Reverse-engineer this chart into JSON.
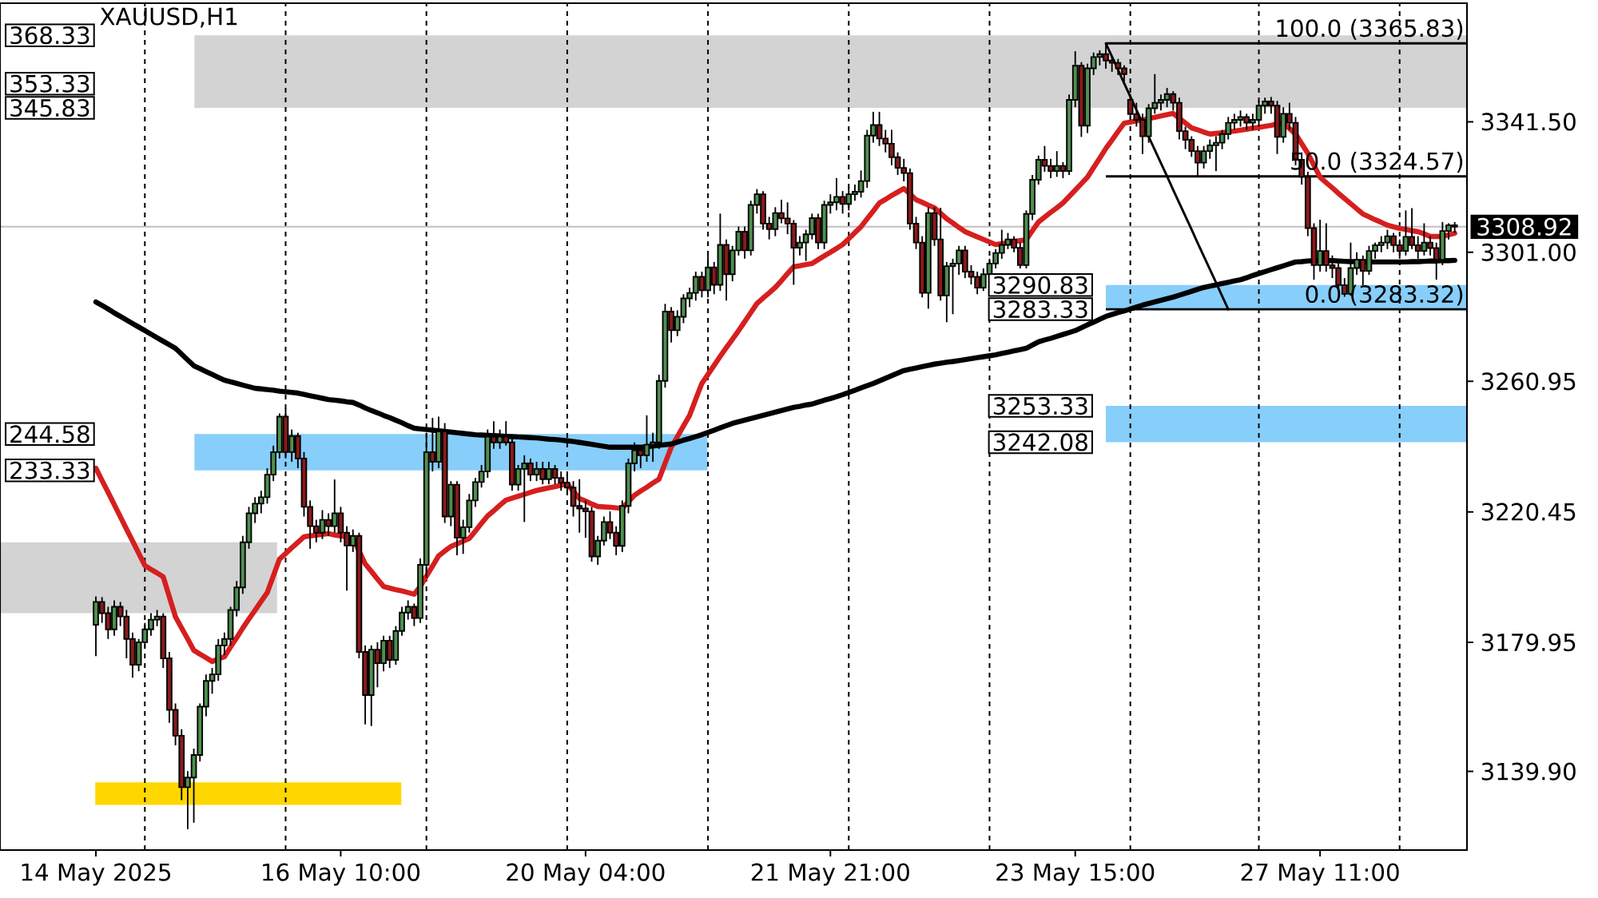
{
  "chart_data": {
    "type": "candlestick",
    "title": "XAUUSD,H1",
    "categories": [
      "14 May 2025",
      null,
      null,
      null,
      null,
      null,
      null,
      null,
      null,
      null,
      null,
      null,
      null,
      null,
      null,
      null,
      null,
      null,
      null,
      null,
      null,
      null,
      null,
      null,
      null,
      null,
      null,
      null,
      null,
      null,
      null,
      null,
      null,
      null,
      null,
      null,
      null,
      null,
      null,
      null,
      "16 May 10:00",
      null,
      null,
      null,
      null,
      null,
      null,
      null,
      null,
      null,
      null,
      null,
      null,
      null,
      null,
      null,
      null,
      null,
      null,
      null,
      null,
      null,
      null,
      null,
      null,
      null,
      null,
      null,
      null,
      null,
      null,
      null,
      null,
      null,
      null,
      null,
      null,
      null,
      null,
      null,
      "20 May 04:00",
      null,
      null,
      null,
      null,
      null,
      null,
      null,
      null,
      null,
      null,
      null,
      null,
      null,
      null,
      null,
      null,
      null,
      null,
      null,
      null,
      null,
      null,
      null,
      null,
      null,
      null,
      null,
      null,
      null,
      null,
      null,
      null,
      null,
      null,
      null,
      null,
      null,
      null,
      null,
      "21 May 21:00",
      null,
      null,
      null,
      null,
      null,
      null,
      null,
      null,
      null,
      null,
      null,
      null,
      null,
      null,
      null,
      null,
      null,
      null,
      null,
      null,
      null,
      null,
      null,
      null,
      null,
      null,
      null,
      null,
      null,
      null,
      null,
      null,
      null,
      null,
      null,
      null,
      null,
      null,
      null,
      "23 May 15:00",
      null,
      null,
      null,
      null,
      null,
      null,
      null,
      null,
      null,
      null,
      null,
      null,
      null,
      null,
      null,
      null,
      null,
      null,
      null,
      null,
      null,
      null,
      null,
      null,
      null,
      null,
      null,
      null,
      null,
      null,
      null,
      null,
      null,
      null,
      null,
      null,
      null,
      null,
      null,
      "27 May 11:00",
      null,
      null,
      null,
      null,
      null,
      null,
      null,
      null,
      null,
      null,
      null,
      null,
      null,
      null,
      null,
      null,
      null,
      null,
      null,
      null,
      null,
      null
    ],
    "ohlc": [
      [
        3185.4,
        3194.2,
        3175.7,
        3192.5
      ],
      [
        3192.5,
        3194,
        3186,
        3189
      ],
      [
        3189,
        3191,
        3181,
        3184
      ],
      [
        3184,
        3193,
        3182,
        3191
      ],
      [
        3191,
        3192.5,
        3185,
        3188
      ],
      [
        3188,
        3190,
        3175,
        3181
      ],
      [
        3181,
        3183,
        3169,
        3173
      ],
      [
        3173,
        3181,
        3171,
        3180
      ],
      [
        3180,
        3186,
        3178,
        3184
      ],
      [
        3184,
        3189,
        3182,
        3187
      ],
      [
        3187,
        3190,
        3185,
        3188
      ],
      [
        3188,
        3189,
        3172,
        3175
      ],
      [
        3175,
        3177,
        3155,
        3159
      ],
      [
        3159,
        3161,
        3148,
        3151
      ],
      [
        3151,
        3153,
        3131,
        3135
      ],
      [
        3135,
        3140,
        3122,
        3138
      ],
      [
        3138,
        3147,
        3124,
        3145
      ],
      [
        3145,
        3161,
        3143,
        3160
      ],
      [
        3160,
        3170,
        3157,
        3168
      ],
      [
        3168,
        3172,
        3164,
        3170
      ],
      [
        3170,
        3181,
        3168,
        3179
      ],
      [
        3179,
        3183,
        3176,
        3181
      ],
      [
        3181,
        3191,
        3179,
        3190
      ],
      [
        3190,
        3199,
        3188,
        3197
      ],
      [
        3197,
        3213,
        3195,
        3211
      ],
      [
        3211,
        3222,
        3209,
        3220
      ],
      [
        3220,
        3225,
        3217,
        3223
      ],
      [
        3223,
        3227,
        3220,
        3225
      ],
      [
        3225,
        3234,
        3223,
        3232
      ],
      [
        3232,
        3241,
        3230,
        3239
      ],
      [
        3239,
        3251,
        3237,
        3250
      ],
      [
        3250,
        3252.5,
        3237,
        3239
      ],
      [
        3239,
        3246,
        3236,
        3244
      ],
      [
        3244,
        3245,
        3234,
        3237
      ],
      [
        3237,
        3239,
        3219,
        3222
      ],
      [
        3222,
        3224,
        3209,
        3216
      ],
      [
        3216,
        3218,
        3211,
        3214
      ],
      [
        3214,
        3221,
        3212,
        3218
      ],
      [
        3218,
        3220,
        3213,
        3216
      ],
      [
        3216,
        3230.5,
        3214,
        3220
      ],
      [
        3220,
        3222,
        3211,
        3214
      ],
      [
        3214,
        3216,
        3196,
        3210
      ],
      [
        3210,
        3215,
        3208,
        3213
      ],
      [
        3213,
        3214,
        3175,
        3177
      ],
      [
        3177,
        3179,
        3154.5,
        3163.6
      ],
      [
        3163.6,
        3179,
        3154,
        3177.7
      ],
      [
        3177.7,
        3180,
        3166,
        3173.5
      ],
      [
        3173.5,
        3182,
        3171,
        3180.5
      ],
      [
        3180.5,
        3182,
        3172,
        3174.5
      ],
      [
        3174.5,
        3185,
        3173,
        3183.5
      ],
      [
        3183.5,
        3191,
        3182,
        3189.2
      ],
      [
        3189.2,
        3193,
        3187,
        3191
      ],
      [
        3191,
        3192,
        3185,
        3187.5
      ],
      [
        3187.5,
        3206,
        3186,
        3204
      ],
      [
        3204,
        3245,
        3200,
        3239
      ],
      [
        3239,
        3249.6,
        3233,
        3236
      ],
      [
        3236,
        3250,
        3234,
        3245.4
      ],
      [
        3245.4,
        3248,
        3217,
        3219
      ],
      [
        3219,
        3230,
        3216,
        3228.9
      ],
      [
        3228.9,
        3230,
        3207,
        3212.4
      ],
      [
        3212.4,
        3218,
        3207.4,
        3215.7
      ],
      [
        3215.7,
        3226,
        3214,
        3224
      ],
      [
        3224,
        3231,
        3222,
        3229.7
      ],
      [
        3229.7,
        3235,
        3228,
        3233
      ],
      [
        3233,
        3246,
        3231,
        3243.8
      ],
      [
        3243.8,
        3248.6,
        3240,
        3242
      ],
      [
        3242,
        3246,
        3240,
        3243.8
      ],
      [
        3243.8,
        3248.6,
        3241,
        3242
      ],
      [
        3242,
        3244,
        3227,
        3228.9
      ],
      [
        3228.9,
        3235,
        3227,
        3233.8
      ],
      [
        3233.8,
        3238,
        3217.3,
        3235.5
      ],
      [
        3235.5,
        3237,
        3230,
        3232
      ],
      [
        3232,
        3236,
        3230,
        3233.8
      ],
      [
        3233.8,
        3236,
        3229,
        3230.6
      ],
      [
        3230.6,
        3236,
        3229,
        3233.8
      ],
      [
        3233.8,
        3235,
        3229,
        3231
      ],
      [
        3231,
        3233,
        3227,
        3229.5
      ],
      [
        3229.5,
        3232,
        3226,
        3228
      ],
      [
        3228,
        3230,
        3219,
        3222.3
      ],
      [
        3222.3,
        3230.6,
        3214,
        3221.5
      ],
      [
        3221.5,
        3224,
        3212.4,
        3220.6
      ],
      [
        3220.6,
        3222,
        3205,
        3206.6
      ],
      [
        3206.6,
        3213,
        3204,
        3211.5
      ],
      [
        3211.5,
        3219,
        3210,
        3217.3
      ],
      [
        3217.3,
        3220.6,
        3212,
        3214
      ],
      [
        3214,
        3216,
        3207,
        3209.9
      ],
      [
        3209.9,
        3224,
        3208,
        3222.3
      ],
      [
        3222.3,
        3237,
        3220,
        3235.5
      ],
      [
        3235.5,
        3242,
        3233,
        3239.6
      ],
      [
        3239.6,
        3241,
        3234,
        3238
      ],
      [
        3238,
        3250.4,
        3236,
        3241.3
      ],
      [
        3241.3,
        3245,
        3236,
        3242
      ],
      [
        3242,
        3263,
        3240,
        3261.1
      ],
      [
        3261.1,
        3285,
        3259,
        3282.6
      ],
      [
        3282.6,
        3284,
        3273,
        3276.8
      ],
      [
        3276.8,
        3283,
        3275,
        3281
      ],
      [
        3281,
        3288,
        3279,
        3286.7
      ],
      [
        3286.7,
        3290,
        3284,
        3288.4
      ],
      [
        3288.4,
        3295,
        3286,
        3293.4
      ],
      [
        3293.4,
        3295,
        3287,
        3289.2
      ],
      [
        3289.2,
        3300,
        3287,
        3296.3
      ],
      [
        3296.3,
        3298,
        3288,
        3290.9
      ],
      [
        3290.9,
        3313,
        3289,
        3303.3
      ],
      [
        3303.3,
        3305,
        3286,
        3294.2
      ],
      [
        3294.2,
        3303,
        3292,
        3301.6
      ],
      [
        3301.6,
        3309,
        3300,
        3307.4
      ],
      [
        3307.4,
        3309,
        3299,
        3301.6
      ],
      [
        3301.6,
        3317,
        3300,
        3315.7
      ],
      [
        3315.7,
        3320.6,
        3313,
        3319
      ],
      [
        3319,
        3320,
        3308,
        3309.9
      ],
      [
        3309.9,
        3312,
        3305,
        3308.2
      ],
      [
        3308.2,
        3315,
        3306,
        3313.2
      ],
      [
        3313.2,
        3317.3,
        3310,
        3311.5
      ],
      [
        3311.5,
        3316.5,
        3306.6,
        3309.9
      ],
      [
        3309.9,
        3311,
        3290.9,
        3302.4
      ],
      [
        3302.4,
        3306,
        3300,
        3304
      ],
      [
        3304,
        3308,
        3298.3,
        3306.6
      ],
      [
        3306.6,
        3313,
        3305,
        3311.6
      ],
      [
        3311.6,
        3313,
        3302,
        3304
      ],
      [
        3304,
        3317,
        3302,
        3315.7
      ],
      [
        3315.7,
        3319,
        3313,
        3316.5
      ],
      [
        3316.5,
        3324,
        3314,
        3318.2
      ],
      [
        3318.2,
        3320,
        3313,
        3316
      ],
      [
        3316,
        3321,
        3314,
        3319
      ],
      [
        3319,
        3322,
        3317,
        3319.8
      ],
      [
        3319.8,
        3326.4,
        3318,
        3323.1
      ],
      [
        3323.1,
        3339,
        3321,
        3337.2
      ],
      [
        3337.2,
        3344.6,
        3335,
        3340.5
      ],
      [
        3340.5,
        3344.6,
        3334,
        3336.3
      ],
      [
        3336.3,
        3339,
        3332,
        3334.7
      ],
      [
        3334.7,
        3339,
        3328,
        3330.5
      ],
      [
        3330.5,
        3332,
        3325,
        3327.2
      ],
      [
        3327.2,
        3330,
        3323,
        3325.6
      ],
      [
        3325.6,
        3327,
        3308,
        3309.9
      ],
      [
        3309.9,
        3312,
        3302,
        3304
      ],
      [
        3304,
        3306,
        3287,
        3288.4
      ],
      [
        3288.4,
        3315,
        3283.5,
        3313.2
      ],
      [
        3313.2,
        3315,
        3303,
        3305
      ],
      [
        3305,
        3314.8,
        3286,
        3287.6
      ],
      [
        3287.6,
        3298,
        3279.3,
        3296.7
      ],
      [
        3296.7,
        3299,
        3281.8,
        3297.5
      ],
      [
        3297.5,
        3303,
        3294,
        3301.6
      ],
      [
        3301.6,
        3303,
        3293,
        3295
      ],
      [
        3295,
        3297,
        3291,
        3293.4
      ],
      [
        3293.4,
        3295,
        3288,
        3290
      ],
      [
        3290,
        3296,
        3289,
        3294.2
      ],
      [
        3294.2,
        3299,
        3294,
        3297.5
      ],
      [
        3297.5,
        3302,
        3296,
        3300.8
      ],
      [
        3300.8,
        3308,
        3299,
        3303.3
      ],
      [
        3303.3,
        3307,
        3302,
        3305
      ],
      [
        3305,
        3306,
        3301,
        3302.4
      ],
      [
        3302.4,
        3304,
        3296,
        3297
      ],
      [
        3297,
        3314,
        3296,
        3312.9
      ],
      [
        3312.9,
        3325,
        3311,
        3323.5
      ],
      [
        3323.5,
        3331,
        3322,
        3329.7
      ],
      [
        3329.7,
        3334,
        3326,
        3327.8
      ],
      [
        3327.8,
        3330,
        3324,
        3326.2
      ],
      [
        3326.2,
        3332.4,
        3324.4,
        3327.8
      ],
      [
        3327.8,
        3329,
        3324,
        3326.2
      ],
      [
        3326.2,
        3350,
        3325,
        3348.3
      ],
      [
        3348.3,
        3363.4,
        3346,
        3358.9
      ],
      [
        3358.9,
        3360,
        3336.8,
        3340.3
      ],
      [
        3340.3,
        3359.5,
        3338,
        3358.1
      ],
      [
        3358.1,
        3363,
        3356,
        3361.6
      ],
      [
        3361.6,
        3363.7,
        3359,
        3362.5
      ],
      [
        3362.5,
        3365.8,
        3358,
        3360.5
      ],
      [
        3360.5,
        3362,
        3357,
        3359.8
      ],
      [
        3359.8,
        3361,
        3356,
        3358.1
      ],
      [
        3358.1,
        3359,
        3354,
        3356.3
      ],
      [
        3348.3,
        3350,
        3342,
        3343.9
      ],
      [
        3343.9,
        3347.4,
        3340,
        3342.1
      ],
      [
        3342.1,
        3344,
        3331.5,
        3337
      ],
      [
        3337,
        3347,
        3335,
        3345.7
      ],
      [
        3345.7,
        3356.3,
        3344,
        3347.4
      ],
      [
        3347.4,
        3350,
        3345,
        3348.3
      ],
      [
        3348.3,
        3352,
        3346,
        3350.1
      ],
      [
        3350.1,
        3351,
        3345,
        3347.4
      ],
      [
        3347.4,
        3349,
        3336,
        3338.6
      ],
      [
        3338.6,
        3340,
        3333,
        3335.9
      ],
      [
        3335.9,
        3337,
        3330.6,
        3332.4
      ],
      [
        3332.4,
        3334,
        3324.4,
        3328.8
      ],
      [
        3328.8,
        3334,
        3327,
        3332.4
      ],
      [
        3332.4,
        3336,
        3330,
        3334.2
      ],
      [
        3334.2,
        3337,
        3326.2,
        3335
      ],
      [
        3335,
        3339,
        3333,
        3337.7
      ],
      [
        3337.7,
        3343,
        3336,
        3341.2
      ],
      [
        3341.2,
        3344,
        3339,
        3342.1
      ],
      [
        3342.1,
        3345,
        3340,
        3343
      ],
      [
        3343,
        3344,
        3339,
        3341.2
      ],
      [
        3341.2,
        3344,
        3339,
        3342.1
      ],
      [
        3342.1,
        3348,
        3340,
        3346.5
      ],
      [
        3346.5,
        3349,
        3344,
        3347.8
      ],
      [
        3347.8,
        3349.2,
        3344,
        3346.5
      ],
      [
        3346.5,
        3348,
        3331.5,
        3336.8
      ],
      [
        3336.8,
        3346,
        3335,
        3344
      ],
      [
        3344,
        3347.4,
        3339,
        3341.2
      ],
      [
        3341.2,
        3343,
        3328,
        3329.7
      ],
      [
        3329.7,
        3332,
        3322,
        3324.4
      ],
      [
        3324.4,
        3326,
        3306,
        3308.5
      ],
      [
        3308.5,
        3310,
        3292.5,
        3297
      ],
      [
        3297,
        3311.1,
        3295,
        3301.4
      ],
      [
        3301.4,
        3310,
        3295,
        3297
      ],
      [
        3297,
        3300,
        3293,
        3296.1
      ],
      [
        3296.1,
        3298,
        3289,
        3290.8
      ],
      [
        3290.8,
        3293,
        3287.2,
        3288.1
      ],
      [
        3288.1,
        3304,
        3287.5,
        3296.1
      ],
      [
        3296.1,
        3301,
        3294,
        3298.7
      ],
      [
        3298.7,
        3300,
        3290.8,
        3295.2
      ],
      [
        3295.2,
        3303,
        3294,
        3301.4
      ],
      [
        3301.4,
        3304,
        3299,
        3303.2
      ],
      [
        3303.2,
        3306,
        3301,
        3304
      ],
      [
        3304,
        3308,
        3302,
        3306
      ],
      [
        3306,
        3307,
        3301,
        3303.2
      ],
      [
        3303.2,
        3305,
        3299,
        3301.4
      ],
      [
        3301.4,
        3314,
        3300,
        3305.8
      ],
      [
        3305.8,
        3314.7,
        3302,
        3303.2
      ],
      [
        3303.2,
        3306,
        3299,
        3301.4
      ],
      [
        3301.4,
        3310,
        3300,
        3304
      ],
      [
        3304,
        3306,
        3300,
        3302.3
      ],
      [
        3302.3,
        3304,
        3292.5,
        3298.7
      ],
      [
        3298.7,
        3310.4,
        3297,
        3307.6
      ],
      [
        3307.6,
        3310,
        3305,
        3309.4
      ],
      [
        3309.4,
        3310.4,
        3307,
        3308.92
      ]
    ],
    "colors": [
      "#4f8f4f",
      "#8b1a1a",
      "#8b1a1a",
      "#4f8f4f",
      "#8b1a1a",
      "#8b1a1a",
      "#8b1a1a",
      "#4f8f4f",
      "#4f8f4f",
      "#4f8f4f",
      "#4f8f4f",
      "#8b1a1a",
      "#8b1a1a",
      "#8b1a1a",
      "#8b1a1a",
      "#4f8f4f",
      "#4f8f4f",
      "#4f8f4f",
      "#4f8f4f",
      "#4f8f4f",
      "#4f8f4f",
      "#4f8f4f",
      "#4f8f4f",
      "#4f8f4f",
      "#4f8f4f",
      "#4f8f4f",
      "#4f8f4f",
      "#4f8f4f",
      "#4f8f4f",
      "#4f8f4f",
      "#4f8f4f",
      "#8b1a1a",
      "#4f8f4f",
      "#8b1a1a",
      "#8b1a1a",
      "#8b1a1a",
      "#8b1a1a",
      "#4f8f4f",
      "#8b1a1a",
      "#4f8f4f",
      "#8b1a1a",
      "#8b1a1a",
      "#4f8f4f",
      "#8b1a1a",
      "#8b1a1a",
      "#4f8f4f",
      "#8b1a1a",
      "#4f8f4f",
      "#8b1a1a",
      "#4f8f4f",
      "#4f8f4f",
      "#4f8f4f",
      "#8b1a1a",
      "#4f8f4f",
      "#4f8f4f",
      "#8b1a1a",
      "#4f8f4f",
      "#8b1a1a",
      "#4f8f4f",
      "#8b1a1a",
      "#4f8f4f",
      "#4f8f4f",
      "#4f8f4f",
      "#4f8f4f",
      "#4f8f4f",
      "#8b1a1a",
      "#4f8f4f",
      "#8b1a1a",
      "#8b1a1a",
      "#4f8f4f",
      "#4f8f4f",
      "#8b1a1a",
      "#4f8f4f",
      "#8b1a1a",
      "#4f8f4f",
      "#8b1a1a",
      "#8b1a1a",
      "#8b1a1a",
      "#8b1a1a",
      "#8b1a1a",
      "#8b1a1a",
      "#8b1a1a",
      "#4f8f4f",
      "#4f8f4f",
      "#8b1a1a",
      "#8b1a1a",
      "#4f8f4f",
      "#4f8f4f",
      "#4f8f4f",
      "#8b1a1a",
      "#4f8f4f",
      "#4f8f4f",
      "#4f8f4f",
      "#4f8f4f",
      "#8b1a1a",
      "#4f8f4f",
      "#4f8f4f",
      "#4f8f4f",
      "#4f8f4f",
      "#8b1a1a",
      "#4f8f4f",
      "#8b1a1a",
      "#4f8f4f",
      "#8b1a1a",
      "#4f8f4f",
      "#4f8f4f",
      "#8b1a1a",
      "#4f8f4f",
      "#4f8f4f",
      "#8b1a1a",
      "#8b1a1a",
      "#4f8f4f",
      "#8b1a1a",
      "#8b1a1a",
      "#8b1a1a",
      "#4f8f4f",
      "#4f8f4f",
      "#4f8f4f",
      "#8b1a1a",
      "#4f8f4f",
      "#4f8f4f",
      "#4f8f4f",
      "#8b1a1a",
      "#4f8f4f",
      "#4f8f4f",
      "#4f8f4f",
      "#4f8f4f",
      "#4f8f4f",
      "#8b1a1a",
      "#8b1a1a",
      "#8b1a1a",
      "#8b1a1a",
      "#8b1a1a",
      "#8b1a1a",
      "#8b1a1a",
      "#8b1a1a",
      "#4f8f4f",
      "#8b1a1a",
      "#8b1a1a",
      "#4f8f4f",
      "#4f8f4f",
      "#4f8f4f",
      "#8b1a1a",
      "#8b1a1a",
      "#8b1a1a",
      "#4f8f4f",
      "#4f8f4f",
      "#4f8f4f",
      "#4f8f4f",
      "#4f8f4f",
      "#8b1a1a",
      "#8b1a1a",
      "#4f8f4f",
      "#4f8f4f",
      "#4f8f4f",
      "#8b1a1a",
      "#8b1a1a",
      "#4f8f4f",
      "#8b1a1a",
      "#4f8f4f",
      "#4f8f4f",
      "#8b1a1a",
      "#4f8f4f",
      "#4f8f4f",
      "#4f8f4f",
      "#8b1a1a",
      "#8b1a1a",
      "#8b1a1a",
      "#8b1a1a",
      "#8b1a1a",
      "#8b1a1a",
      "#8b1a1a",
      "#4f8f4f",
      "#4f8f4f",
      "#4f8f4f",
      "#4f8f4f",
      "#8b1a1a",
      "#8b1a1a",
      "#8b1a1a",
      "#8b1a1a",
      "#8b1a1a",
      "#4f8f4f",
      "#4f8f4f",
      "#4f8f4f",
      "#4f8f4f",
      "#4f8f4f",
      "#4f8f4f",
      "#4f8f4f",
      "#8b1a1a",
      "#4f8f4f",
      "#4f8f4f",
      "#4f8f4f",
      "#8b1a1a",
      "#8b1a1a",
      "#4f8f4f",
      "#8b1a1a",
      "#8b1a1a",
      "#8b1a1a",
      "#8b1a1a",
      "#8b1a1a",
      "#4f8f4f",
      "#8b1a1a",
      "#8b1a1a",
      "#8b1a1a",
      "#8b1a1a",
      "#4f8f4f",
      "#4f8f4f",
      "#8b1a1a",
      "#4f8f4f",
      "#4f8f4f",
      "#4f8f4f",
      "#4f8f4f",
      "#8b1a1a",
      "#8b1a1a",
      "#4f8f4f",
      "#8b1a1a",
      "#8b1a1a",
      "#4f8f4f",
      "#8b1a1a",
      "#8b1a1a",
      "#4f8f4f",
      "#4f8f4f",
      "#8b1a1a"
    ],
    "series": [
      {
        "type": "line",
        "color": "#d61f1f",
        "values": [
          3234.0,
          3230.2,
          3226.5,
          3222.7,
          3218.9,
          3215.1,
          3211.4,
          3207.6,
          3203.8,
          3202.6,
          3201.5,
          3200.3,
          3194.1,
          3187.9,
          3184.4,
          3181.0,
          3177.5,
          3176.3,
          3175.2,
          3174.0,
          3174.8,
          3175.5,
          3178.5,
          3181.4,
          3184.4,
          3187.2,
          3189.9,
          3192.7,
          3195.4,
          3200.6,
          3205.8,
          3207.5,
          3209.3,
          3211.0,
          3212.7,
          3213.0,
          3213.2,
          3213.5,
          3213.7,
          3213.3,
          3213.0,
          3212.6,
          3212.2,
          3208.3,
          3204.3,
          3202.0,
          3199.6,
          3197.3,
          3196.8,
          3196.3,
          3195.9,
          3195.4,
          3194.9,
          3197.3,
          3200.5,
          3203.6,
          3206.8,
          3208.3,
          3209.7,
          3210.5,
          3211.4,
          3212.2,
          3214.5,
          3216.9,
          3219.2,
          3220.8,
          3222.5,
          3224.1,
          3224.7,
          3225.3,
          3225.9,
          3226.5,
          3227.1,
          3227.5,
          3227.9,
          3228.3,
          3228.7,
          3229.1,
          3226.9,
          3224.6,
          3223.8,
          3222.9,
          3222.1,
          3222.0,
          3221.9,
          3221.7,
          3221.6,
          3223.6,
          3225.6,
          3226.9,
          3228.1,
          3229.4,
          3230.6,
          3235.6,
          3240.5,
          3243.8,
          3247.1,
          3250.4,
          3255.4,
          3260.3,
          3263.1,
          3265.9,
          3268.7,
          3271.4,
          3274.0,
          3276.7,
          3279.5,
          3282.3,
          3285.1,
          3286.8,
          3288.4,
          3290.1,
          3292.2,
          3294.4,
          3296.5,
          3296.8,
          3297.2,
          3297.5,
          3298.7,
          3299.9,
          3301.0,
          3302.2,
          3303.4,
          3305.2,
          3307.1,
          3308.9,
          3311.4,
          3313.8,
          3316.3,
          3317.4,
          3318.6,
          3319.7,
          3320.8,
          3319.1,
          3317.3,
          3316.5,
          3315.6,
          3314.8,
          3313.1,
          3311.4,
          3310.1,
          3308.7,
          3307.4,
          3306.6,
          3305.8,
          3305.0,
          3304.2,
          3303.4,
          3303.7,
          3304.0,
          3304.3,
          3304.6,
          3304.9,
          3307.7,
          3310.4,
          3311.9,
          3313.4,
          3314.8,
          3316.3,
          3318.3,
          3320.3,
          3322.3,
          3324.3,
          3327.3,
          3330.2,
          3333.2,
          3335.8,
          3338.5,
          3341.1,
          3341.4,
          3341.8,
          3342.1,
          3342.5,
          3342.9,
          3343.3,
          3343.7,
          3344.1,
          3342.6,
          3341.1,
          3339.6,
          3339.0,
          3338.3,
          3337.7,
          3337.9,
          3338.1,
          3338.4,
          3338.6,
          3338.9,
          3339.2,
          3339.5,
          3339.8,
          3340.1,
          3340.4,
          3340.8,
          3341.1,
          3339.4,
          3337.7,
          3334.7,
          3331.7,
          3328.0,
          3324.3,
          3322.6,
          3321.0,
          3319.3,
          3317.7,
          3316.1,
          3314.5,
          3312.9,
          3312.0,
          3311.1,
          3310.3,
          3309.4,
          3308.9,
          3308.4,
          3308.1,
          3307.7,
          3307.4,
          3306.7,
          3305.9,
          3305.9,
          3305.9,
          3306.4,
          3306.9
        ]
      },
      {
        "type": "line",
        "color": "#000000",
        "values": [
          3285.6,
          3284.5,
          3283.4,
          3282.2,
          3281.1,
          3280.0,
          3278.9,
          3277.8,
          3276.7,
          3275.6,
          3274.5,
          3273.4,
          3272.3,
          3271.2,
          3269.4,
          3267.6,
          3265.8,
          3264.9,
          3264.0,
          3263.1,
          3262.2,
          3261.3,
          3260.8,
          3260.3,
          3259.8,
          3259.3,
          3258.8,
          3258.6,
          3258.4,
          3258.2,
          3257.9,
          3257.7,
          3257.5,
          3257.3,
          3256.9,
          3256.5,
          3256.1,
          3255.7,
          3255.3,
          3255.1,
          3254.9,
          3254.6,
          3254.4,
          3253.6,
          3252.7,
          3251.9,
          3251.2,
          3250.4,
          3249.7,
          3248.9,
          3248.1,
          3247.2,
          3246.4,
          3246.2,
          3246.0,
          3245.8,
          3245.6,
          3245.4,
          3245.2,
          3245.0,
          3244.8,
          3244.6,
          3244.4,
          3244.3,
          3244.2,
          3244.1,
          3244.0,
          3243.9,
          3243.8,
          3243.7,
          3243.6,
          3243.5,
          3243.4,
          3243.2,
          3243.0,
          3242.9,
          3242.7,
          3242.5,
          3242.3,
          3242.0,
          3241.7,
          3241.4,
          3241.1,
          3240.8,
          3240.5,
          3240.5,
          3240.5,
          3240.5,
          3240.5,
          3240.5,
          3240.7,
          3240.9,
          3241.1,
          3241.3,
          3241.5,
          3242.1,
          3242.7,
          3243.2,
          3243.8,
          3244.4,
          3245.1,
          3245.8,
          3246.5,
          3247.2,
          3247.9,
          3248.4,
          3248.9,
          3249.4,
          3249.9,
          3250.4,
          3250.9,
          3251.4,
          3251.9,
          3252.4,
          3252.9,
          3253.2,
          3253.6,
          3253.9,
          3254.5,
          3255.1,
          3255.6,
          3256.2,
          3256.8,
          3257.5,
          3258.2,
          3258.9,
          3259.6,
          3260.3,
          3261.1,
          3261.9,
          3262.7,
          3263.5,
          3264.3,
          3264.7,
          3265.1,
          3265.5,
          3265.9,
          3266.3,
          3266.6,
          3266.9,
          3267.1,
          3267.4,
          3267.7,
          3268.0,
          3268.3,
          3268.6,
          3268.9,
          3269.2,
          3269.6,
          3270.0,
          3270.4,
          3270.8,
          3271.2,
          3272.2,
          3273.2,
          3273.8,
          3274.3,
          3274.9,
          3275.5,
          3276.1,
          3276.7,
          3277.6,
          3278.5,
          3279.3,
          3280.2,
          3281.1,
          3281.7,
          3282.3,
          3282.8,
          3283.4,
          3284.0,
          3284.6,
          3285.1,
          3285.6,
          3286.1,
          3286.6,
          3287.1,
          3287.7,
          3288.3,
          3288.9,
          3289.5,
          3290.1,
          3290.5,
          3290.9,
          3291.3,
          3291.7,
          3292.1,
          3292.5,
          3293.1,
          3293.8,
          3294.4,
          3295.0,
          3295.6,
          3296.2,
          3296.8,
          3297.4,
          3298.0,
          3298.1,
          3298.3,
          3298.4,
          3298.5,
          3298.4,
          3298.4,
          3298.3,
          3298.2,
          3298.1,
          3298.1,
          3298.0,
          3298.0,
          3298.0,
          3298.0,
          3298.0,
          3298.0,
          3298.0,
          3298.0,
          3298.1,
          3298.1,
          3298.2,
          3298.3,
          3298.3,
          3298.4,
          3298.4,
          3298.5
        ]
      },
      {
        "type": "line",
        "color": "#000000",
        "values": [
          null,
          null,
          null,
          null,
          null,
          null,
          null,
          null,
          null,
          null,
          null,
          null,
          null,
          null,
          null,
          null,
          null,
          null,
          null,
          null,
          null,
          null,
          null,
          null,
          null,
          null,
          null,
          null,
          null,
          null,
          null,
          null,
          null,
          null,
          null,
          null,
          null,
          null,
          null,
          null,
          null,
          null,
          null,
          null,
          null,
          null,
          null,
          null,
          null,
          null,
          null,
          null,
          null,
          null,
          null,
          null,
          null,
          null,
          null,
          null,
          null,
          null,
          null,
          null,
          null,
          null,
          null,
          null,
          null,
          null,
          null,
          null,
          null,
          null,
          null,
          null,
          null,
          null,
          null,
          null,
          null,
          null,
          null,
          null,
          null,
          null,
          null,
          null,
          null,
          null,
          null,
          null,
          null,
          null,
          null,
          null,
          null,
          null,
          null,
          null,
          null,
          null,
          null,
          null,
          null,
          null,
          null,
          null,
          null,
          null,
          null,
          null,
          null,
          null,
          null,
          null,
          null,
          null,
          null,
          null,
          null,
          null,
          null,
          null,
          null,
          null,
          null,
          null,
          null,
          null,
          null,
          null,
          null,
          null,
          null,
          null,
          null,
          null,
          null,
          null,
          null,
          null,
          null,
          null,
          null,
          null,
          null,
          null,
          null,
          null,
          null,
          null,
          null,
          null,
          null,
          null,
          null,
          null,
          null,
          null,
          null,
          null,
          null,
          null,
          null,
          3365.8,
          3361.7,
          3357.6,
          3353.4,
          3349.3,
          3345.2,
          3341.1,
          3336.9,
          3332.8,
          3328.7,
          3324.6,
          3320.4,
          3316.3,
          3312.2,
          3308.1,
          3303.9,
          3299.8,
          3295.7,
          3291.6,
          3287.4,
          3283.3,
          null,
          null,
          null,
          null,
          null,
          null,
          null,
          null,
          null,
          null,
          null,
          null,
          null,
          null,
          null,
          null,
          null,
          null,
          null,
          null,
          null,
          null,
          null,
          null,
          null,
          null,
          null,
          null,
          null,
          null,
          null,
          null,
          null,
          null,
          null,
          null,
          null
        ]
      }
    ],
    "ylim": [
      3115.5,
      3378.3
    ],
    "yticks": [
      {
        "value": 3341.5,
        "label": "3341.50"
      },
      {
        "value": 3301,
        "label": "3301.00"
      },
      3260.95,
      3220.45,
      3179.95,
      {
        "value": 3139.9,
        "label": "3139.90"
      }
    ],
    "y2lim": [
      115.5,
      378.3
    ],
    "y2ticks": [
      368.33,
      353.33,
      345.83,
      244.58,
      233.33
    ],
    "ref_lines": [
      {
        "axis": "y",
        "value": 3308.92,
        "label": "3308.92",
        "color": "#c0c0c0"
      },
      {
        "axis": "y",
        "value": 3365.83,
        "label": "100.0 (3365.83)",
        "color": "#000000"
      },
      {
        "axis": "y",
        "value": 3324.57,
        "label": "50.0 (3324.57)",
        "color": "#000000"
      },
      {
        "axis": "y",
        "value": 3283.32,
        "label": "0.0 (3283.32)",
        "color": "#000000"
      }
    ],
    "bands": [
      {
        "axis": "y",
        "from": 3345.83,
        "to": 3368.33,
        "color": "#d3d3d3"
      },
      {
        "axis": "y",
        "from": 3233.33,
        "to": 3244.58,
        "color": "#87cefa"
      },
      {
        "axis": "y",
        "from": 3283.33,
        "to": 3290.83,
        "color": "#87cefa"
      },
      {
        "axis": "y",
        "from": 3242.08,
        "to": 3253.33,
        "color": "#87cefa"
      },
      {
        "axis": "y",
        "from": 3189,
        "to": 3211,
        "color": "#d3d3d3"
      },
      {
        "axis": "y",
        "from": 3129.5,
        "to": 3136.5,
        "color": "#ffd700"
      }
    ],
    "annotations": [
      "3290.83",
      "3283.33",
      "3253.33",
      "3242.08"
    ]
  }
}
